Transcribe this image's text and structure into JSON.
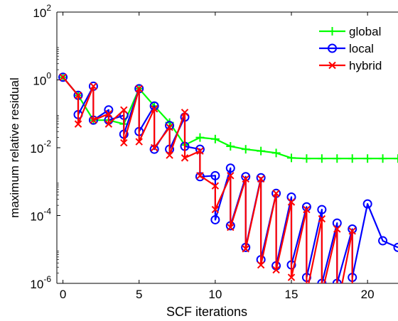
{
  "chart_data": {
    "type": "line",
    "title": "",
    "xlabel": "SCF iterations",
    "ylabel": "maximum relative residual",
    "xlim": [
      -0.4,
      22
    ],
    "ylim_exponent": [
      -6,
      2
    ],
    "yscale": "log",
    "x_ticks": [
      0,
      5,
      10,
      15,
      20
    ],
    "y_ticks": [
      {
        "base": "10",
        "exp": "-6",
        "value": -6
      },
      {
        "base": "10",
        "exp": "-4",
        "value": -4
      },
      {
        "base": "10",
        "exp": "-2",
        "value": -2
      },
      {
        "base": "10",
        "exp": "0",
        "value": 0
      },
      {
        "base": "10",
        "exp": "2",
        "value": 2
      }
    ],
    "legend_position": "top-right",
    "grid": false,
    "series": [
      {
        "name": "global",
        "color": "#00ff00",
        "marker": "plus",
        "x": [
          0,
          1,
          2,
          3,
          4,
          5,
          6,
          7,
          8,
          9,
          10,
          11,
          12,
          13,
          14,
          15,
          16,
          17,
          18,
          19,
          20,
          21,
          22
        ],
        "y": [
          1.2,
          0.35,
          0.065,
          0.065,
          0.05,
          0.55,
          0.17,
          0.055,
          0.012,
          0.02,
          0.018,
          0.011,
          0.009,
          0.008,
          0.007,
          0.005,
          0.0048,
          0.0048,
          0.0048,
          0.0048,
          0.0048,
          0.0048,
          0.0048
        ]
      },
      {
        "name": "local",
        "color": "#0000ff",
        "marker": "circle",
        "x": [
          0,
          1,
          1,
          2,
          2,
          3,
          3,
          4,
          4,
          5,
          5,
          6,
          6,
          7,
          7,
          8,
          8,
          9,
          9,
          10,
          10,
          11,
          11,
          12,
          12,
          13,
          13,
          14,
          14,
          15,
          15,
          16,
          16,
          17,
          17,
          18,
          18,
          19,
          19,
          20,
          21,
          22
        ],
        "y": [
          1.2,
          0.35,
          0.095,
          0.65,
          0.065,
          0.13,
          0.065,
          0.09,
          0.025,
          0.55,
          0.03,
          0.17,
          0.009,
          0.045,
          0.009,
          0.08,
          0.011,
          0.009,
          0.0014,
          0.0015,
          7.5e-05,
          0.0025,
          5e-05,
          0.0014,
          1.15e-05,
          0.0013,
          5e-06,
          0.00045,
          3.3e-06,
          0.00035,
          3.5e-06,
          0.00018,
          1.5e-06,
          0.00015,
          1e-06,
          6e-05,
          1e-06,
          4e-05,
          1.5e-06,
          0.00022,
          1.8e-05,
          1.15e-05
        ]
      },
      {
        "name": "hybrid",
        "color": "#ff0000",
        "marker": "x",
        "x": [
          0,
          1,
          1,
          2,
          2,
          3,
          3,
          4,
          4,
          5,
          5,
          6,
          6,
          7,
          7,
          8,
          8,
          9,
          9,
          10,
          10,
          11,
          11,
          12,
          12,
          13,
          13,
          14,
          14,
          15,
          15,
          16,
          16,
          17,
          17,
          18,
          18,
          19,
          19,
          20
        ],
        "y": [
          1.2,
          0.35,
          0.05,
          0.65,
          0.065,
          0.1,
          0.05,
          0.13,
          0.014,
          0.55,
          0.015,
          0.14,
          0.01,
          0.04,
          0.006,
          0.11,
          0.005,
          0.008,
          0.0015,
          0.00075,
          0.00015,
          0.0015,
          4.5e-05,
          0.0012,
          1.05e-05,
          0.0012,
          3.5e-06,
          0.00045,
          2.5e-06,
          0.00025,
          1.5e-06,
          0.00015,
          5e-07,
          8e-05,
          5e-07,
          4e-05,
          1.7e-07,
          3.5e-05,
          1.3e-07,
          1e-07
        ]
      }
    ]
  }
}
